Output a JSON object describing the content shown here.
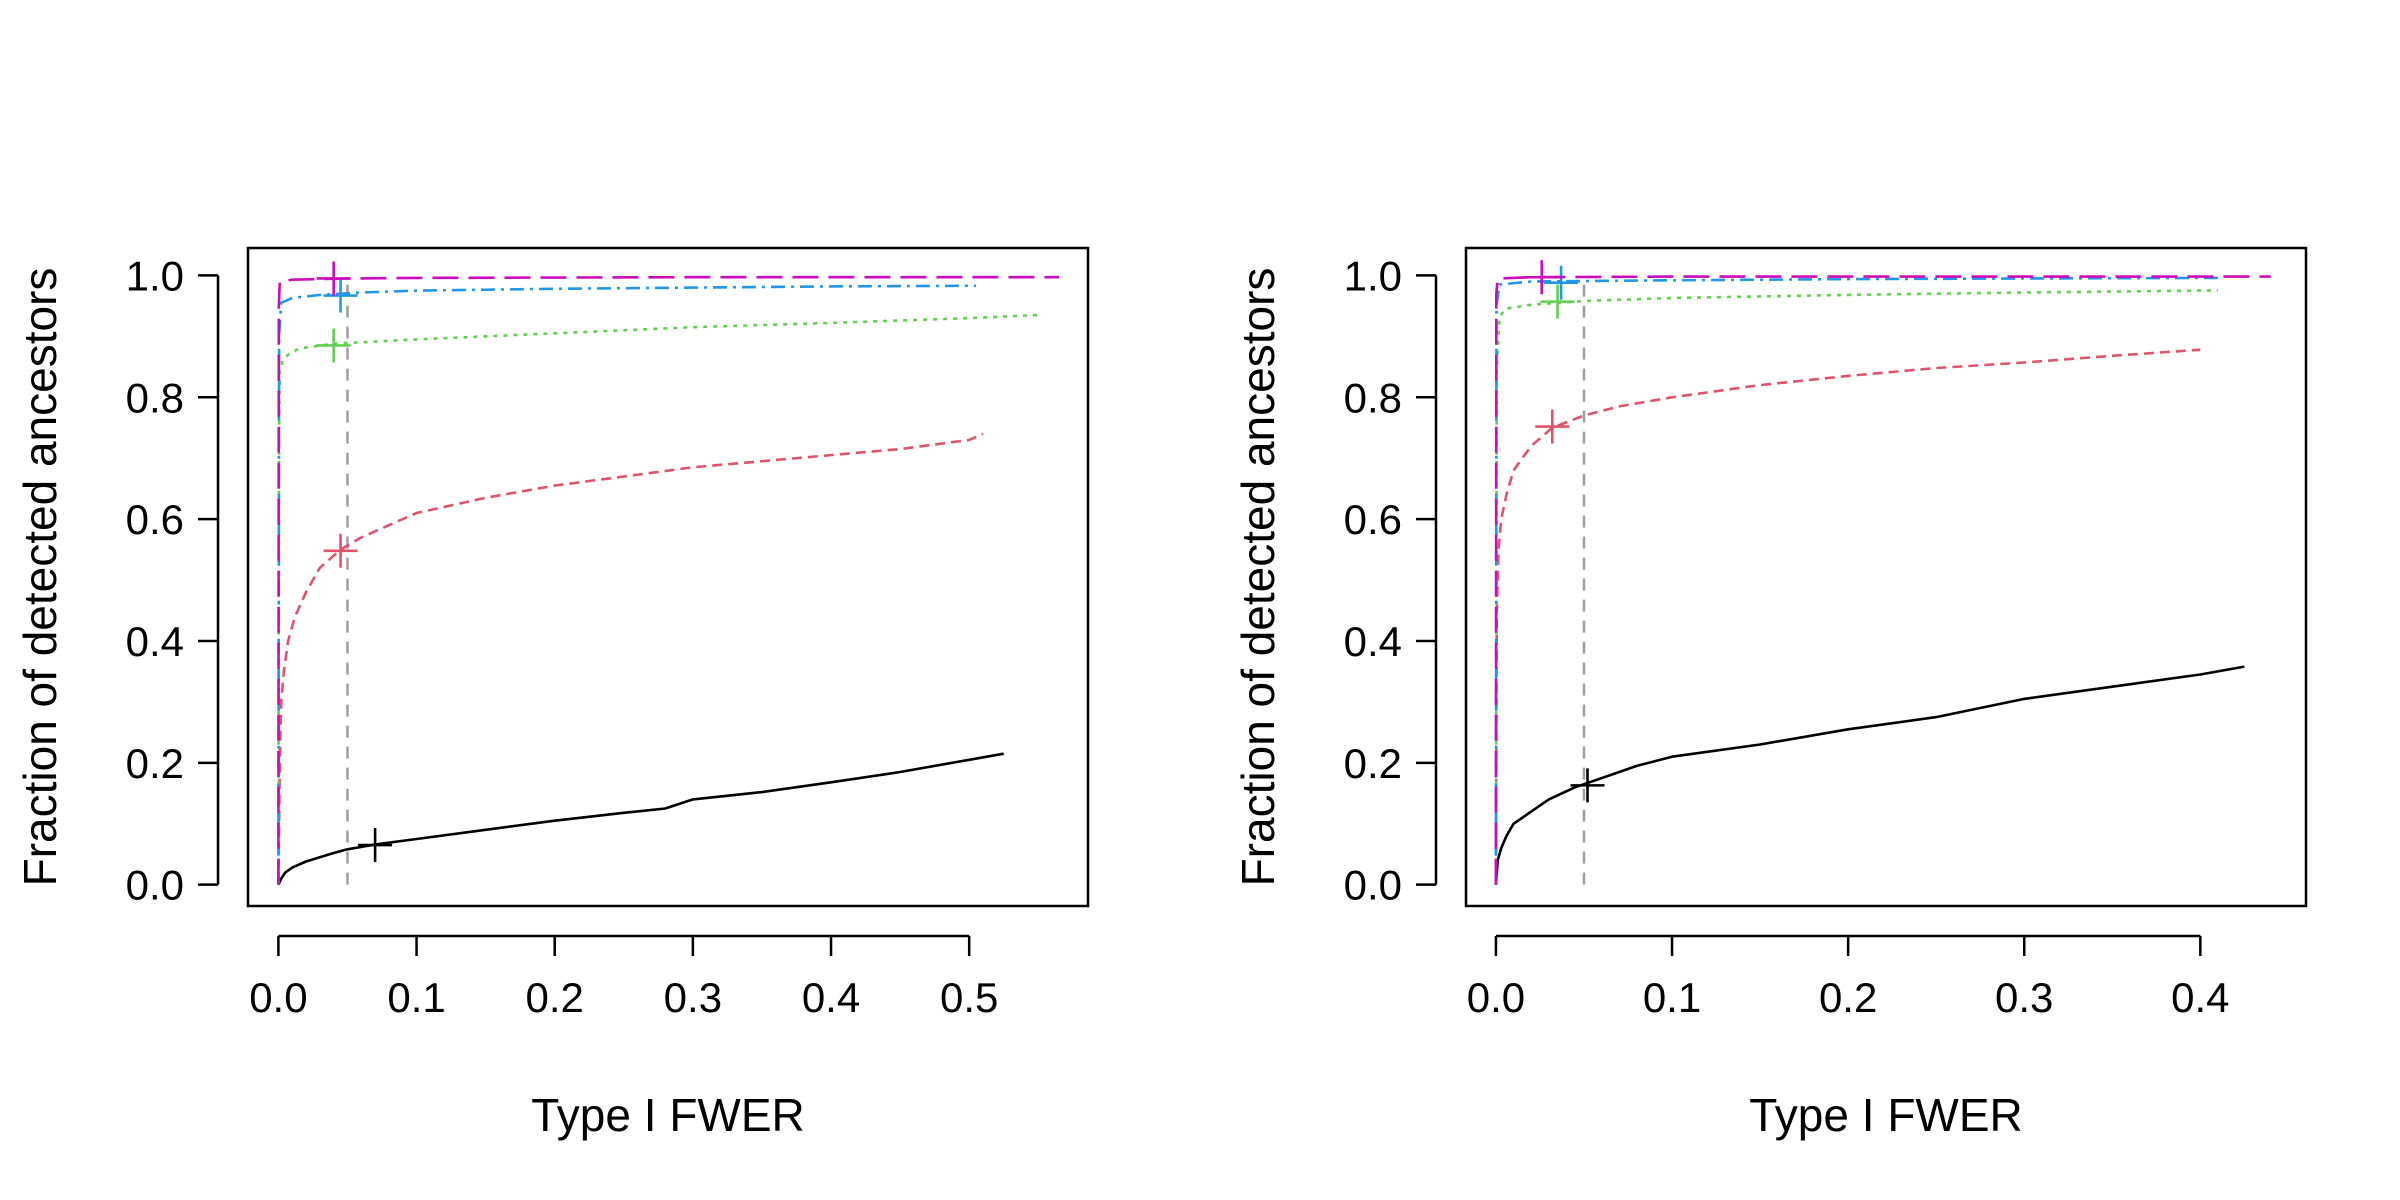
{
  "chart_data": [
    {
      "type": "line",
      "xlabel": "Type I FWER",
      "ylabel": "Fraction of detected ancestors",
      "xlim": [
        -0.022,
        0.586
      ],
      "ylim": [
        -0.035,
        1.045
      ],
      "xticks": [
        0.0,
        0.1,
        0.2,
        0.3,
        0.4,
        0.5
      ],
      "xtick_labels": [
        "0.0",
        "0.1",
        "0.2",
        "0.3",
        "0.4",
        "0.5"
      ],
      "yticks": [
        0.0,
        0.2,
        0.4,
        0.6,
        0.8,
        1.0
      ],
      "ytick_labels": [
        "0.0",
        "0.2",
        "0.4",
        "0.6",
        "0.8",
        "1.0"
      ],
      "reference_line": {
        "x": 0.05,
        "color": "#9e9e9e",
        "style": "dashed"
      },
      "series": [
        {
          "name": "black",
          "color": "#000000",
          "dash": "",
          "points": [
            [
              0.0,
              0.0
            ],
            [
              0.002,
              0.01
            ],
            [
              0.005,
              0.02
            ],
            [
              0.01,
              0.028
            ],
            [
              0.02,
              0.038
            ],
            [
              0.03,
              0.045
            ],
            [
              0.04,
              0.052
            ],
            [
              0.05,
              0.058
            ],
            [
              0.07,
              0.066
            ],
            [
              0.1,
              0.075
            ],
            [
              0.15,
              0.09
            ],
            [
              0.2,
              0.105
            ],
            [
              0.25,
              0.118
            ],
            [
              0.28,
              0.125
            ],
            [
              0.3,
              0.14
            ],
            [
              0.35,
              0.152
            ],
            [
              0.4,
              0.168
            ],
            [
              0.45,
              0.185
            ],
            [
              0.5,
              0.205
            ],
            [
              0.525,
              0.215
            ]
          ],
          "marker": [
            0.07,
            0.065
          ]
        },
        {
          "name": "red",
          "color": "#df536b",
          "dash": "10,6",
          "points": [
            [
              0.0,
              0.0
            ],
            [
              0.001,
              0.2
            ],
            [
              0.002,
              0.3
            ],
            [
              0.004,
              0.35
            ],
            [
              0.007,
              0.4
            ],
            [
              0.012,
              0.44
            ],
            [
              0.02,
              0.48
            ],
            [
              0.03,
              0.52
            ],
            [
              0.045,
              0.55
            ],
            [
              0.06,
              0.57
            ],
            [
              0.08,
              0.59
            ],
            [
              0.1,
              0.61
            ],
            [
              0.15,
              0.635
            ],
            [
              0.2,
              0.655
            ],
            [
              0.25,
              0.67
            ],
            [
              0.3,
              0.685
            ],
            [
              0.35,
              0.695
            ],
            [
              0.4,
              0.705
            ],
            [
              0.45,
              0.715
            ],
            [
              0.5,
              0.73
            ],
            [
              0.51,
              0.74
            ]
          ],
          "marker": [
            0.045,
            0.548
          ]
        },
        {
          "name": "green",
          "color": "#61d04f",
          "dash": "4,6",
          "points": [
            [
              0.0,
              0.0
            ],
            [
              0.0005,
              0.75
            ],
            [
              0.001,
              0.84
            ],
            [
              0.003,
              0.86
            ],
            [
              0.007,
              0.87
            ],
            [
              0.015,
              0.88
            ],
            [
              0.04,
              0.888
            ],
            [
              0.1,
              0.895
            ],
            [
              0.2,
              0.905
            ],
            [
              0.3,
              0.915
            ],
            [
              0.4,
              0.922
            ],
            [
              0.5,
              0.93
            ],
            [
              0.55,
              0.935
            ]
          ],
          "marker": [
            0.04,
            0.885
          ]
        },
        {
          "name": "blue",
          "color": "#2297e6",
          "dash": "14,6,3,6",
          "points": [
            [
              0.0,
              0.0
            ],
            [
              0.0005,
              0.9
            ],
            [
              0.002,
              0.955
            ],
            [
              0.01,
              0.963
            ],
            [
              0.03,
              0.968
            ],
            [
              0.06,
              0.972
            ],
            [
              0.1,
              0.975
            ],
            [
              0.2,
              0.978
            ],
            [
              0.3,
              0.98
            ],
            [
              0.4,
              0.982
            ],
            [
              0.5,
              0.983
            ],
            [
              0.505,
              0.983
            ]
          ],
          "marker": [
            0.045,
            0.967
          ]
        },
        {
          "name": "magenta",
          "color": "#cd0bbc",
          "dash": "26,10",
          "points": [
            [
              0.0,
              0.0
            ],
            [
              0.0003,
              0.95
            ],
            [
              0.001,
              0.99
            ],
            [
              0.01,
              0.993
            ],
            [
              0.05,
              0.995
            ],
            [
              0.1,
              0.996
            ],
            [
              0.3,
              0.997
            ],
            [
              0.5,
              0.997
            ],
            [
              0.565,
              0.997
            ]
          ],
          "marker": [
            0.04,
            0.995
          ]
        }
      ]
    },
    {
      "type": "line",
      "xlabel": "Type I FWER",
      "ylabel": "Fraction of detected ancestors",
      "xlim": [
        -0.017,
        0.46
      ],
      "ylim": [
        -0.035,
        1.045
      ],
      "xticks": [
        0.0,
        0.1,
        0.2,
        0.3,
        0.4
      ],
      "xtick_labels": [
        "0.0",
        "0.1",
        "0.2",
        "0.3",
        "0.4"
      ],
      "yticks": [
        0.0,
        0.2,
        0.4,
        0.6,
        0.8,
        1.0
      ],
      "ytick_labels": [
        "0.0",
        "0.2",
        "0.4",
        "0.6",
        "0.8",
        "1.0"
      ],
      "reference_line": {
        "x": 0.05,
        "color": "#9e9e9e",
        "style": "dashed"
      },
      "series": [
        {
          "name": "black",
          "color": "#000000",
          "dash": "",
          "points": [
            [
              0.0,
              0.0
            ],
            [
              0.001,
              0.04
            ],
            [
              0.003,
              0.06
            ],
            [
              0.006,
              0.08
            ],
            [
              0.01,
              0.1
            ],
            [
              0.02,
              0.12
            ],
            [
              0.03,
              0.14
            ],
            [
              0.045,
              0.16
            ],
            [
              0.06,
              0.175
            ],
            [
              0.08,
              0.195
            ],
            [
              0.1,
              0.21
            ],
            [
              0.15,
              0.23
            ],
            [
              0.2,
              0.255
            ],
            [
              0.25,
              0.275
            ],
            [
              0.3,
              0.305
            ],
            [
              0.35,
              0.325
            ],
            [
              0.4,
              0.345
            ],
            [
              0.425,
              0.358
            ]
          ],
          "marker": [
            0.052,
            0.163
          ]
        },
        {
          "name": "red",
          "color": "#df536b",
          "dash": "10,6",
          "points": [
            [
              0.0,
              0.0
            ],
            [
              0.0005,
              0.45
            ],
            [
              0.0015,
              0.55
            ],
            [
              0.003,
              0.6
            ],
            [
              0.006,
              0.64
            ],
            [
              0.01,
              0.68
            ],
            [
              0.02,
              0.72
            ],
            [
              0.032,
              0.75
            ],
            [
              0.05,
              0.77
            ],
            [
              0.07,
              0.785
            ],
            [
              0.1,
              0.8
            ],
            [
              0.15,
              0.82
            ],
            [
              0.2,
              0.835
            ],
            [
              0.25,
              0.848
            ],
            [
              0.3,
              0.857
            ],
            [
              0.35,
              0.868
            ],
            [
              0.4,
              0.878
            ]
          ],
          "marker": [
            0.032,
            0.752
          ]
        },
        {
          "name": "green",
          "color": "#61d04f",
          "dash": "4,6",
          "points": [
            [
              0.0,
              0.0
            ],
            [
              0.0005,
              0.85
            ],
            [
              0.002,
              0.93
            ],
            [
              0.005,
              0.945
            ],
            [
              0.02,
              0.952
            ],
            [
              0.05,
              0.958
            ],
            [
              0.1,
              0.963
            ],
            [
              0.2,
              0.968
            ],
            [
              0.3,
              0.972
            ],
            [
              0.4,
              0.975
            ],
            [
              0.41,
              0.975
            ]
          ],
          "marker": [
            0.035,
            0.957
          ]
        },
        {
          "name": "blue",
          "color": "#2297e6",
          "dash": "14,6,3,6",
          "points": [
            [
              0.0,
              0.0
            ],
            [
              0.0003,
              0.95
            ],
            [
              0.002,
              0.985
            ],
            [
              0.02,
              0.99
            ],
            [
              0.1,
              0.992
            ],
            [
              0.2,
              0.994
            ],
            [
              0.3,
              0.995
            ],
            [
              0.41,
              0.996
            ]
          ],
          "marker": [
            0.037,
            0.988
          ]
        },
        {
          "name": "magenta",
          "color": "#cd0bbc",
          "dash": "26,10",
          "points": [
            [
              0.0,
              0.0
            ],
            [
              0.0002,
              0.97
            ],
            [
              0.001,
              0.995
            ],
            [
              0.02,
              0.997
            ],
            [
              0.1,
              0.998
            ],
            [
              0.3,
              0.998
            ],
            [
              0.44,
              0.998
            ]
          ],
          "marker": [
            0.026,
            0.997
          ]
        }
      ]
    }
  ]
}
